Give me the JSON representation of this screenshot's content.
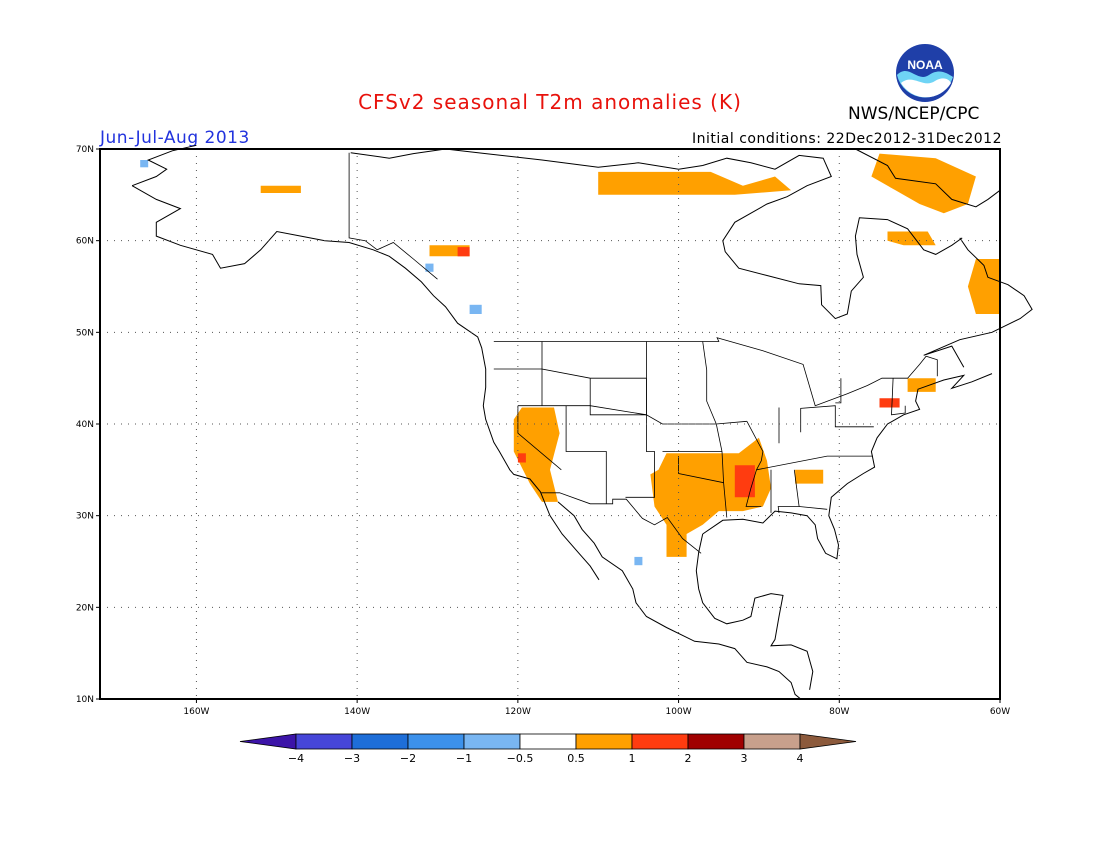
{
  "header": {
    "title": "CFSv2 seasonal T2m anomalies (K)",
    "season": "Jun-Jul-Aug 2013",
    "initial_conditions": "Initial conditions: 22Dec2012-31Dec2012",
    "agency": "NWS/NCEP/CPC",
    "logo_text": "NOAA"
  },
  "colors": {
    "title": "#e8120c",
    "season": "#2233dd",
    "warm_05_1": "#ffa000",
    "warm_1_2": "#ff3c10",
    "cold_1_05": "#79b6f2"
  },
  "map": {
    "lon_range": [
      -172,
      -60
    ],
    "lat_range": [
      10,
      70
    ],
    "lon_ticks": [
      {
        "value": -160,
        "label": "160W"
      },
      {
        "value": -140,
        "label": "140W"
      },
      {
        "value": -120,
        "label": "120W"
      },
      {
        "value": -100,
        "label": "100W"
      },
      {
        "value": -80,
        "label": "80W"
      },
      {
        "value": -60,
        "label": "60W"
      }
    ],
    "lat_ticks": [
      {
        "value": 10,
        "label": "10N"
      },
      {
        "value": 20,
        "label": "20N"
      },
      {
        "value": 30,
        "label": "30N"
      },
      {
        "value": 40,
        "label": "40N"
      },
      {
        "value": 50,
        "label": "50N"
      },
      {
        "value": 60,
        "label": "60N"
      },
      {
        "value": 70,
        "label": "70N"
      }
    ],
    "grid": true,
    "anomaly_regions": [
      {
        "category": "0.5 to 1",
        "color": "#ffa000",
        "points": [
          [
            -119.5,
            41.8
          ],
          [
            -115.5,
            41.8
          ],
          [
            -114.8,
            39
          ],
          [
            -116,
            35
          ],
          [
            -115,
            31.5
          ],
          [
            -117,
            31.5
          ],
          [
            -118.5,
            33.5
          ],
          [
            -120.5,
            37
          ],
          [
            -120.5,
            40.5
          ]
        ]
      },
      {
        "category": "0.5 to 1",
        "color": "#ffa000",
        "points": [
          [
            -101.5,
            36.8
          ],
          [
            -92.5,
            36.8
          ],
          [
            -90,
            38.5
          ],
          [
            -89,
            36
          ],
          [
            -88.5,
            33
          ],
          [
            -89.5,
            31
          ],
          [
            -92,
            30.5
          ],
          [
            -95,
            30.5
          ],
          [
            -97,
            29
          ],
          [
            -99,
            28
          ],
          [
            -99,
            25.5
          ],
          [
            -101.5,
            25.5
          ],
          [
            -101.5,
            29
          ],
          [
            -103,
            31
          ],
          [
            -103.5,
            34.5
          ],
          [
            -102.5,
            35
          ]
        ]
      },
      {
        "category": "0.5 to 1",
        "color": "#ffa000",
        "points": [
          [
            -110,
            67.5
          ],
          [
            -96,
            67.5
          ],
          [
            -92,
            66
          ],
          [
            -88,
            67
          ],
          [
            -86,
            65.5
          ],
          [
            -93,
            65
          ],
          [
            -100,
            65
          ],
          [
            -110,
            65
          ]
        ]
      },
      {
        "category": "0.5 to 1",
        "color": "#ffa000",
        "points": [
          [
            -75,
            69.5
          ],
          [
            -68,
            69
          ],
          [
            -63,
            67
          ],
          [
            -64,
            64
          ],
          [
            -67,
            63
          ],
          [
            -70,
            64
          ],
          [
            -73,
            65.5
          ],
          [
            -76,
            67
          ]
        ]
      },
      {
        "category": "0.5 to 1",
        "color": "#ffa000",
        "points": [
          [
            -63,
            58
          ],
          [
            -60,
            58
          ],
          [
            -60,
            52
          ],
          [
            -63,
            52
          ],
          [
            -64,
            55
          ]
        ]
      },
      {
        "category": "0.5 to 1",
        "color": "#ffa000",
        "points": [
          [
            -74,
            61
          ],
          [
            -69,
            61
          ],
          [
            -68,
            59.5
          ],
          [
            -72,
            59.5
          ],
          [
            -74,
            60
          ]
        ]
      },
      {
        "category": "0.5 to 1",
        "color": "#ffa000",
        "points": [
          [
            -152,
            66
          ],
          [
            -147,
            66
          ],
          [
            -147,
            65.2
          ],
          [
            -152,
            65.2
          ]
        ]
      },
      {
        "category": "0.5 to 1",
        "color": "#ffa000",
        "points": [
          [
            -131,
            59.5
          ],
          [
            -126,
            59.5
          ],
          [
            -126,
            58.3
          ],
          [
            -131,
            58.3
          ]
        ]
      },
      {
        "category": "0.5 to 1",
        "color": "#ffa000",
        "points": [
          [
            -85.5,
            35
          ],
          [
            -82,
            35
          ],
          [
            -82,
            33.5
          ],
          [
            -85.5,
            33.5
          ]
        ]
      },
      {
        "category": "0.5 to 1",
        "color": "#ffa000",
        "points": [
          [
            -71.5,
            45
          ],
          [
            -68,
            45
          ],
          [
            -68,
            43.5
          ],
          [
            -71.5,
            43.5
          ]
        ]
      }
    ],
    "strong_regions": [
      {
        "category": "1 to 2",
        "color": "#ff3c10",
        "points": [
          [
            -93,
            35.5
          ],
          [
            -90.5,
            35.5
          ],
          [
            -90.5,
            32
          ],
          [
            -93,
            32
          ]
        ]
      },
      {
        "category": "1 to 2",
        "color": "#ff3c10",
        "points": [
          [
            -127.5,
            59.3
          ],
          [
            -126,
            59.3
          ],
          [
            -126,
            58.3
          ],
          [
            -127.5,
            58.3
          ]
        ]
      },
      {
        "category": "1 to 2",
        "color": "#ff3c10",
        "points": [
          [
            -75,
            42.8
          ],
          [
            -72.5,
            42.8
          ],
          [
            -72.5,
            41.8
          ],
          [
            -75,
            41.8
          ]
        ]
      },
      {
        "category": "1 to 2",
        "color": "#ff3c10",
        "points": [
          [
            -120,
            36.8
          ],
          [
            -119,
            36.8
          ],
          [
            -119,
            35.8
          ],
          [
            -120,
            35.8
          ]
        ]
      }
    ],
    "cold_regions": [
      {
        "category": "-1 to -0.5",
        "color": "#79b6f2",
        "points": [
          [
            -167,
            68.8
          ],
          [
            -166,
            68.8
          ],
          [
            -166,
            68
          ],
          [
            -167,
            68
          ]
        ]
      },
      {
        "category": "-1 to -0.5",
        "color": "#79b6f2",
        "points": [
          [
            -126,
            53
          ],
          [
            -124.5,
            53
          ],
          [
            -124.5,
            52
          ],
          [
            -126,
            52
          ]
        ]
      },
      {
        "category": "-1 to -0.5",
        "color": "#79b6f2",
        "points": [
          [
            -105.5,
            25.5
          ],
          [
            -104.5,
            25.5
          ],
          [
            -104.5,
            24.6
          ],
          [
            -105.5,
            24.6
          ]
        ]
      },
      {
        "category": "-1 to -0.5",
        "color": "#79b6f2",
        "points": [
          [
            -131.5,
            57.5
          ],
          [
            -130.5,
            57.5
          ],
          [
            -130.5,
            56.6
          ],
          [
            -131.5,
            56.6
          ]
        ]
      }
    ]
  },
  "colorbar": {
    "bins": [
      {
        "color": "#3c14a8"
      },
      {
        "color": "#4646d8"
      },
      {
        "color": "#1e6ed8"
      },
      {
        "color": "#3c91eb"
      },
      {
        "color": "#79b6f2"
      },
      {
        "color": "#ffffff"
      },
      {
        "color": "#ffa000"
      },
      {
        "color": "#ff3c10"
      },
      {
        "color": "#a00000"
      },
      {
        "color": "#c8a08c"
      },
      {
        "color": "#8c5a3c"
      }
    ],
    "labels": [
      "−4",
      "−3",
      "−2",
      "−1",
      "−0.5",
      "0.5",
      "1",
      "2",
      "3",
      "4"
    ]
  }
}
